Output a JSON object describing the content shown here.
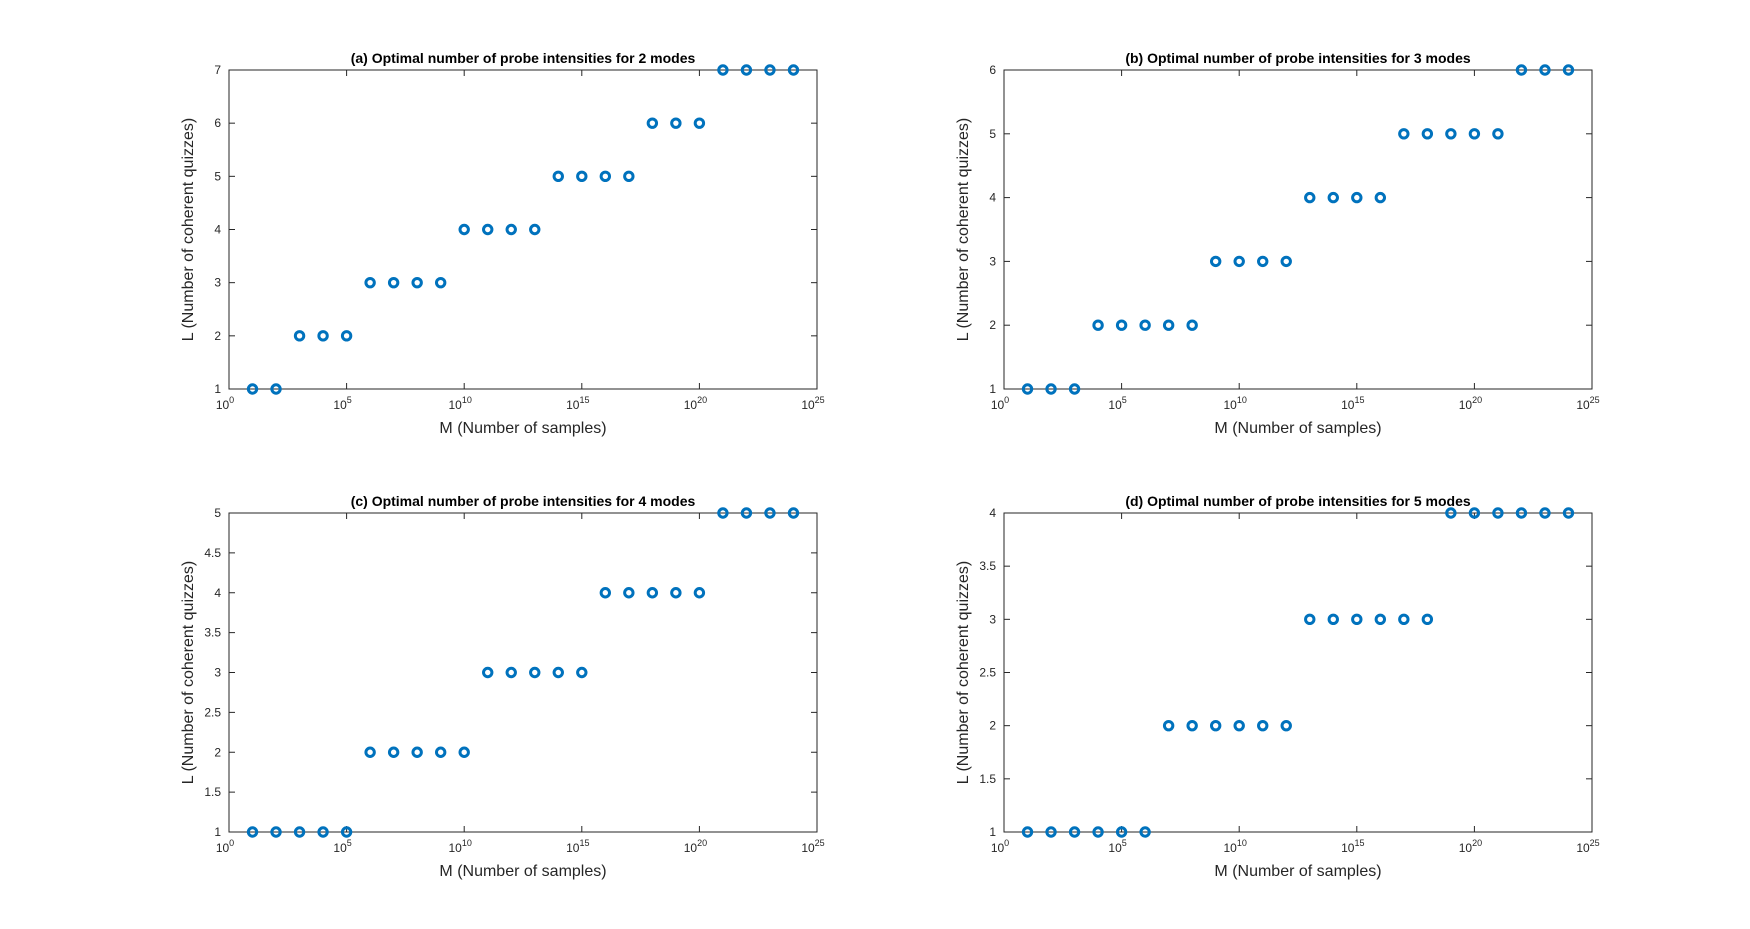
{
  "style": {
    "marker_color": "#0072BD",
    "axis_color": "#262626",
    "background": "#ffffff"
  },
  "chart_data": [
    {
      "type": "scatter",
      "title": "(a) Optimal number of probe intensities for 2 modes",
      "xlabel": "M (Number of samples)",
      "ylabel": "L (Number of coherent quizzes)",
      "xscale": "log",
      "xlim_exponent": [
        0,
        25
      ],
      "x_tick_exponents": [
        0,
        5,
        10,
        15,
        20,
        25
      ],
      "ylim": [
        1,
        7
      ],
      "y_ticks": [
        "1",
        "2",
        "3",
        "4",
        "5",
        "6",
        "7"
      ],
      "grid": false,
      "marker": "circle",
      "x_exponents": [
        1,
        2,
        3,
        4,
        5,
        6,
        7,
        8,
        9,
        10,
        11,
        12,
        13,
        14,
        15,
        16,
        17,
        18,
        19,
        20,
        21,
        22,
        23,
        24
      ],
      "y": [
        1,
        1,
        2,
        2,
        2,
        3,
        3,
        3,
        3,
        4,
        4,
        4,
        4,
        5,
        5,
        5,
        5,
        6,
        6,
        6,
        7,
        7,
        7,
        7
      ]
    },
    {
      "type": "scatter",
      "title": "(b) Optimal number of probe intensities for 3 modes",
      "xlabel": "M (Number of samples)",
      "ylabel": "L (Number of coherent quizzes)",
      "xscale": "log",
      "xlim_exponent": [
        0,
        25
      ],
      "x_tick_exponents": [
        0,
        5,
        10,
        15,
        20,
        25
      ],
      "ylim": [
        1,
        6
      ],
      "y_ticks": [
        "1",
        "2",
        "3",
        "4",
        "5",
        "6"
      ],
      "grid": false,
      "marker": "circle",
      "x_exponents": [
        1,
        2,
        3,
        4,
        5,
        6,
        7,
        8,
        9,
        10,
        11,
        12,
        13,
        14,
        15,
        16,
        17,
        18,
        19,
        20,
        21,
        22,
        23,
        24
      ],
      "y": [
        1,
        1,
        1,
        2,
        2,
        2,
        2,
        2,
        3,
        3,
        3,
        3,
        4,
        4,
        4,
        4,
        5,
        5,
        5,
        5,
        5,
        6,
        6,
        6
      ]
    },
    {
      "type": "scatter",
      "title": "(c) Optimal number of probe intensities for 4 modes",
      "xlabel": "M (Number of samples)",
      "ylabel": "L (Number of coherent quizzes)",
      "xscale": "log",
      "xlim_exponent": [
        0,
        25
      ],
      "x_tick_exponents": [
        0,
        5,
        10,
        15,
        20,
        25
      ],
      "ylim": [
        1,
        5
      ],
      "y_ticks": [
        "1",
        "1.5",
        "2",
        "2.5",
        "3",
        "3.5",
        "4",
        "4.5",
        "5"
      ],
      "grid": false,
      "marker": "circle",
      "x_exponents": [
        1,
        2,
        3,
        4,
        5,
        6,
        7,
        8,
        9,
        10,
        11,
        12,
        13,
        14,
        15,
        16,
        17,
        18,
        19,
        20,
        21,
        22,
        23,
        24
      ],
      "y": [
        1,
        1,
        1,
        1,
        1,
        2,
        2,
        2,
        2,
        2,
        3,
        3,
        3,
        3,
        3,
        4,
        4,
        4,
        4,
        4,
        5,
        5,
        5,
        5
      ]
    },
    {
      "type": "scatter",
      "title": "(d) Optimal number of probe intensities for 5 modes",
      "xlabel": "M (Number of samples)",
      "ylabel": "L (Number of coherent quizzes)",
      "xscale": "log",
      "xlim_exponent": [
        0,
        25
      ],
      "x_tick_exponents": [
        0,
        5,
        10,
        15,
        20,
        25
      ],
      "ylim": [
        1,
        4
      ],
      "y_ticks": [
        "1",
        "1.5",
        "2",
        "2.5",
        "3",
        "3.5",
        "4"
      ],
      "grid": false,
      "marker": "circle",
      "x_exponents": [
        1,
        2,
        3,
        4,
        5,
        6,
        7,
        8,
        9,
        10,
        11,
        12,
        13,
        14,
        15,
        16,
        17,
        18,
        19,
        20,
        21,
        22,
        23,
        24
      ],
      "y": [
        1,
        1,
        1,
        1,
        1,
        1,
        2,
        2,
        2,
        2,
        2,
        2,
        3,
        3,
        3,
        3,
        3,
        3,
        4,
        4,
        4,
        4,
        4,
        4
      ]
    }
  ]
}
